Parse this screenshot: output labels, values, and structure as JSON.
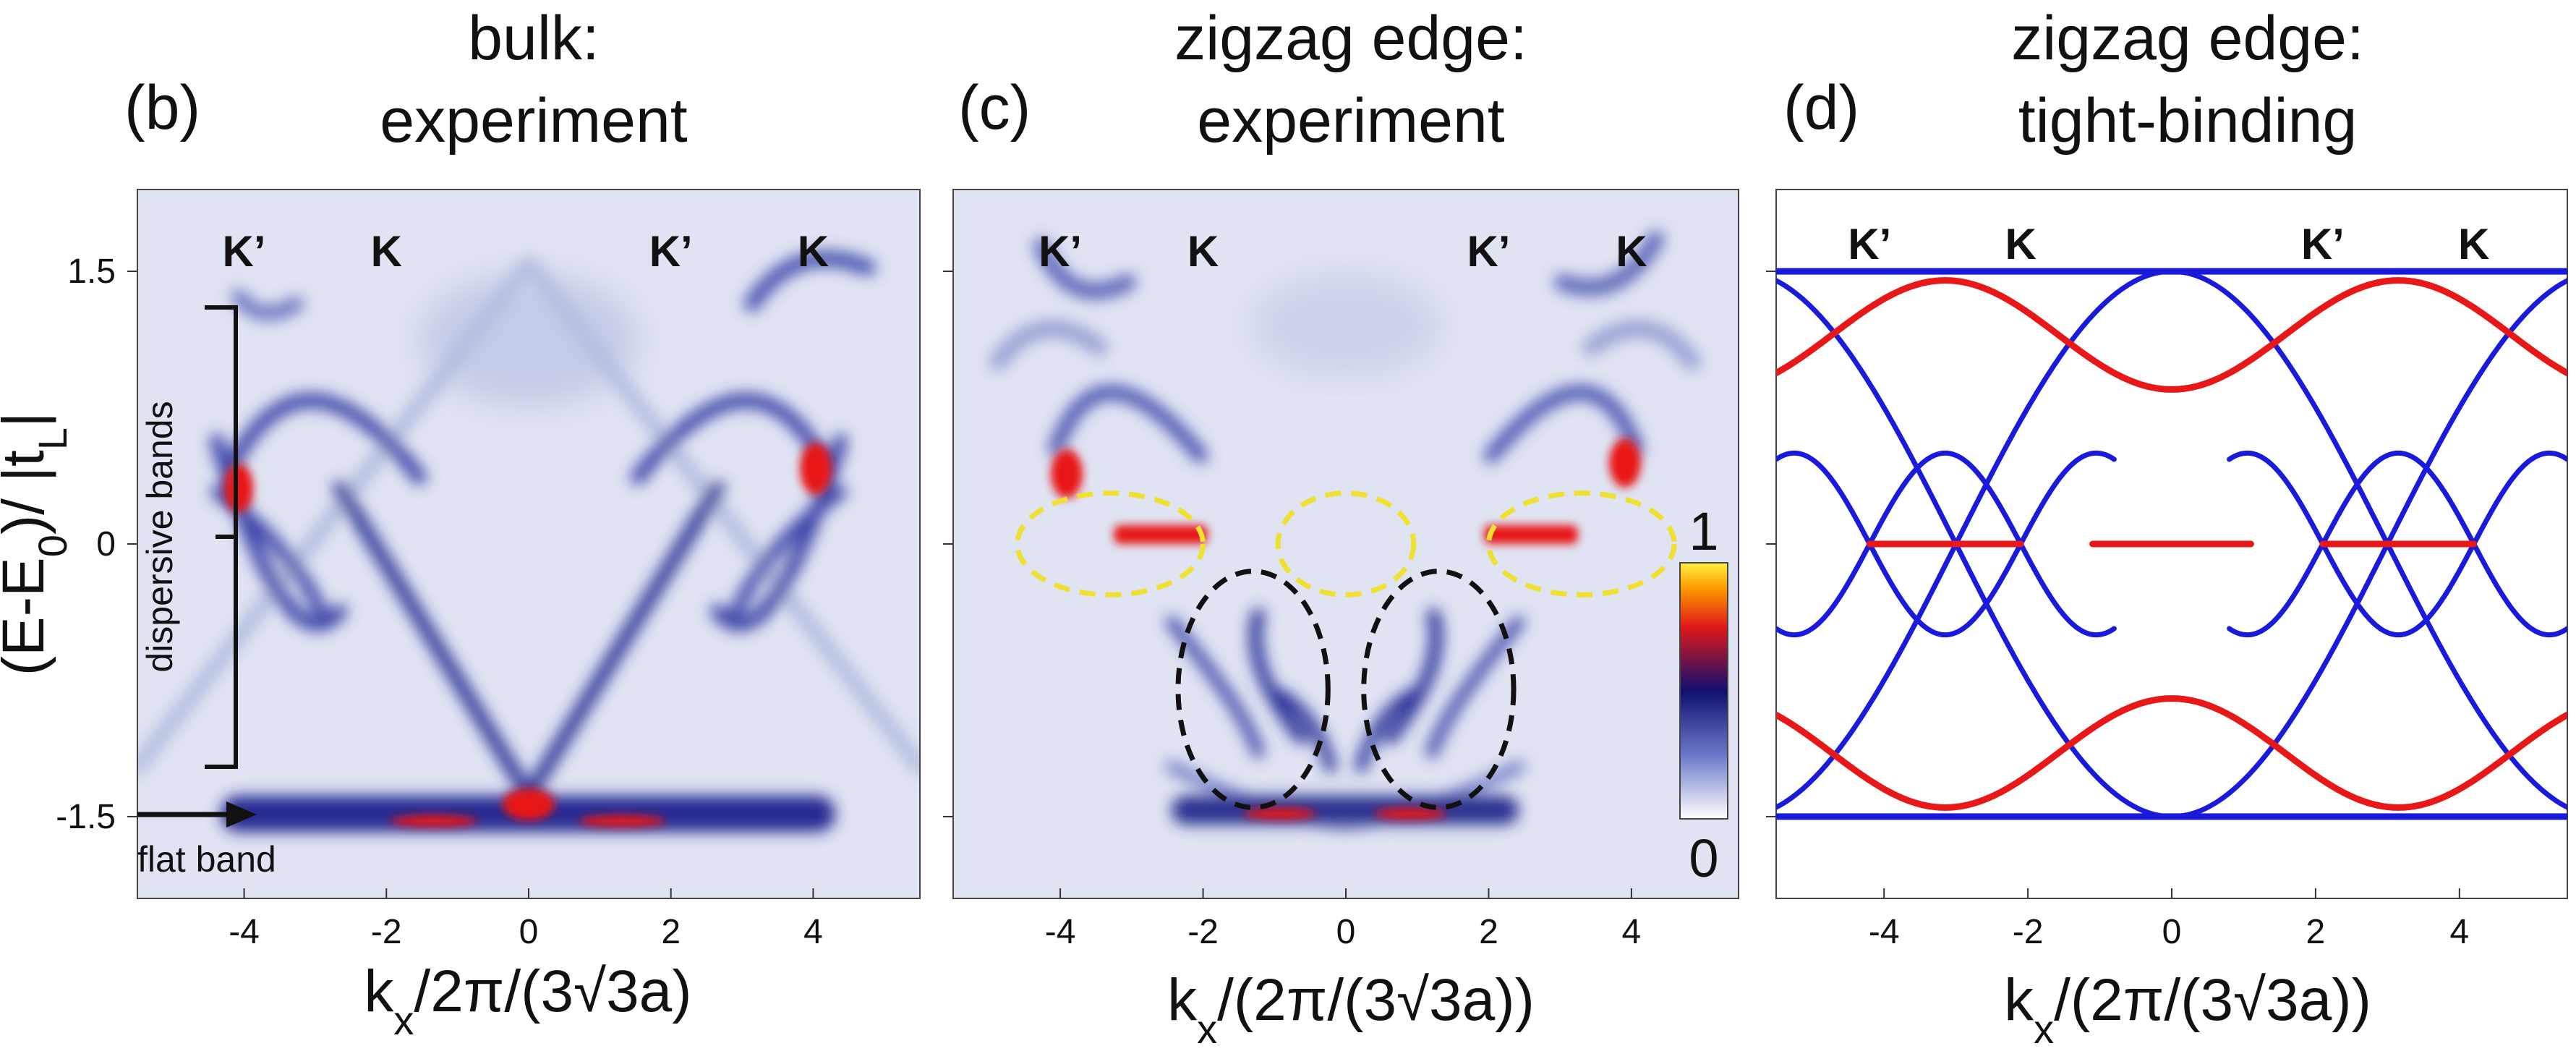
{
  "colors": {
    "blue": "#1a1adc",
    "red": "#e81818",
    "yellow_dash": "#f0e030",
    "black_dash": "#111111",
    "map_background": "#dfe3f2"
  },
  "chart_data": [
    {
      "panel": "(b)",
      "type": "heatmap",
      "title_lines": [
        "bulk:",
        "experiment"
      ],
      "xlabel": "kx/2π/(3√3a)",
      "ylabel": "(E-E0)/ |tL|",
      "xlim": [
        -5.5,
        5.5
      ],
      "ylim": [
        -1.95,
        1.95
      ],
      "x_ticks": [
        -4,
        -2,
        0,
        2,
        4
      ],
      "y_ticks": [
        1.5,
        0,
        -1.5
      ],
      "x_tick_labels": [
        "-4",
        "-2",
        "0",
        "2",
        "4"
      ],
      "y_tick_labels": [
        "1.5",
        "0",
        "-1.5"
      ],
      "symmetry_points": [
        {
          "label": "K’",
          "x": -4
        },
        {
          "label": "K",
          "x": -2
        },
        {
          "label": "K’",
          "x": 2
        },
        {
          "label": "K",
          "x": 4
        }
      ],
      "annotations": {
        "dispersive": "dispersive bands",
        "flat": "flat band"
      },
      "bracket_range": [
        -1.25,
        1.3
      ],
      "flat_band_energy": -1.5
    },
    {
      "panel": "(c)",
      "type": "heatmap",
      "title_lines": [
        "zigzag edge:",
        "experiment"
      ],
      "xlabel": "kx/(2π/(3√3a))",
      "xlim": [
        -5.5,
        5.5
      ],
      "ylim": [
        -1.95,
        1.95
      ],
      "x_ticks": [
        -4,
        -2,
        0,
        2,
        4
      ],
      "x_tick_labels": [
        "-4",
        "-2",
        "0",
        "2",
        "4"
      ],
      "y_ticks": [
        1.5,
        0,
        -1.5
      ],
      "symmetry_points": [
        {
          "label": "K’",
          "x": -4
        },
        {
          "label": "K",
          "x": -2
        },
        {
          "label": "K’",
          "x": 2
        },
        {
          "label": "K",
          "x": 4
        }
      ],
      "colorbar": {
        "min_label": "0",
        "max_label": "1"
      },
      "highlight_ellipses": [
        {
          "color": "yellow",
          "cx": -3.3,
          "cy": 0,
          "rx": 1.3,
          "ry": 0.28
        },
        {
          "color": "yellow",
          "cx": 0,
          "cy": 0,
          "rx": 0.95,
          "ry": 0.28
        },
        {
          "color": "yellow",
          "cx": 3.3,
          "cy": 0,
          "rx": 1.3,
          "ry": 0.28
        },
        {
          "color": "black",
          "cx": -1.3,
          "cy": -0.8,
          "rx": 1.05,
          "ry": 0.65
        },
        {
          "color": "black",
          "cx": 1.3,
          "cy": -0.8,
          "rx": 1.05,
          "ry": 0.65
        }
      ]
    },
    {
      "panel": "(d)",
      "type": "line",
      "title_lines": [
        "zigzag edge:",
        "tight-binding"
      ],
      "xlabel": "kx/(2π/(3√3a))",
      "xlim": [
        -5.5,
        5.5
      ],
      "ylim": [
        -1.95,
        1.95
      ],
      "x_ticks": [
        -4,
        -2,
        0,
        2,
        4
      ],
      "x_tick_labels": [
        "-4",
        "-2",
        "0",
        "2",
        "4"
      ],
      "y_ticks": [
        1.5,
        0,
        -1.5
      ],
      "symmetry_points": [
        {
          "label": "K’",
          "x": -4.2
        },
        {
          "label": "K",
          "x": -2.1
        },
        {
          "label": "K’",
          "x": 2.1
        },
        {
          "label": "K",
          "x": 4.2
        }
      ],
      "flat_band_energies": [
        1.5,
        -1.5
      ],
      "series": [
        {
          "color": "blue",
          "description": "flat bands at ±1.5 and dispersive bulk bands"
        },
        {
          "color": "red",
          "description": "edge-state bands and flat edge states at E = 0"
        }
      ]
    }
  ]
}
